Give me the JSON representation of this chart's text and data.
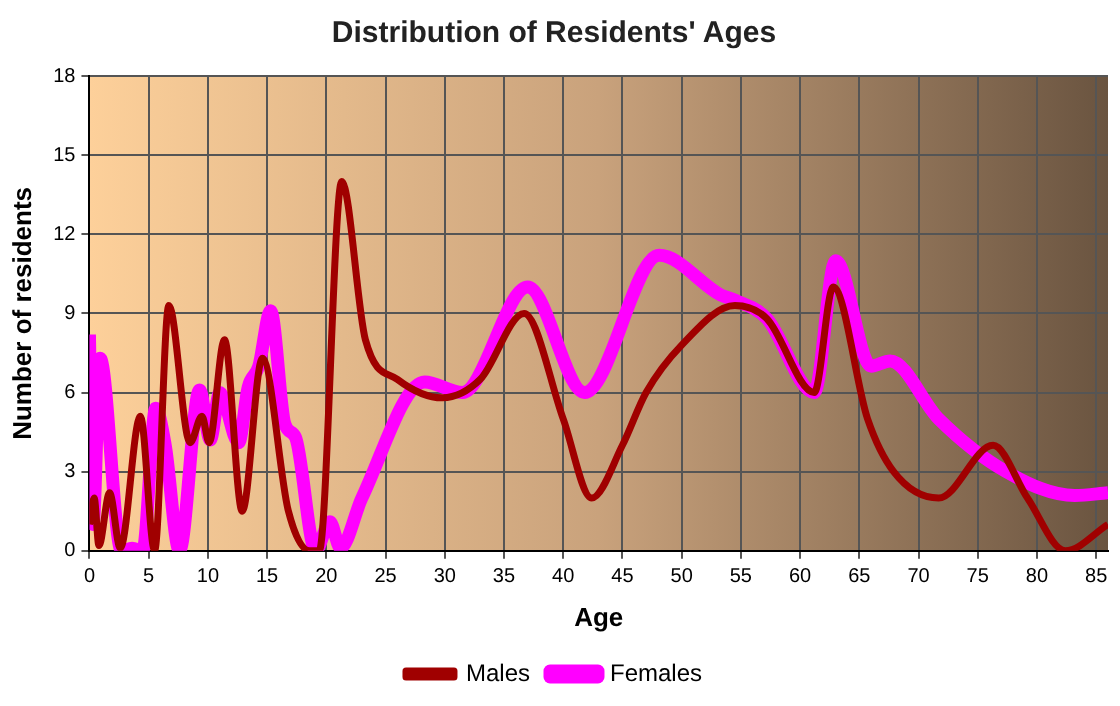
{
  "chart_data": {
    "type": "line",
    "title": "Distribution of Residents' Ages",
    "xlabel": "Age",
    "ylabel": "Number of residents",
    "xlim": [
      0,
      86
    ],
    "xticks": [
      0,
      5,
      10,
      15,
      20,
      25,
      30,
      35,
      40,
      45,
      50,
      55,
      60,
      65,
      70,
      75,
      80,
      85
    ],
    "ylim": [
      0,
      18
    ],
    "yticks": [
      0,
      3,
      6,
      9,
      12,
      15,
      18
    ],
    "grid": true,
    "legend": "bottom",
    "marker": "none",
    "series": [
      {
        "name": "Males",
        "color": "#a00000",
        "x": [
          0,
          0.4,
          0.8,
          1.7,
          2.6,
          4.3,
          5.5,
          6.7,
          8.5,
          9.5,
          10.1,
          11.4,
          12.9,
          14.6,
          16.8,
          18.6,
          19.4,
          21.3,
          23.3,
          26,
          29.8,
          33,
          36.7,
          40,
          42.4,
          45,
          47,
          50,
          54.5,
          57.2,
          61.2,
          62.8,
          65.7,
          67.9,
          71.7,
          76.3,
          79.2,
          82.4,
          86
        ],
        "values": [
          1,
          2,
          0.2,
          2.2,
          0.1,
          5.1,
          0,
          9.3,
          4.1,
          5.1,
          4.1,
          8,
          1.5,
          7.3,
          1.5,
          0,
          0,
          14,
          8,
          6.5,
          5.8,
          6.5,
          9,
          5,
          2,
          4,
          6,
          7.8,
          9.3,
          8.8,
          6,
          10,
          5,
          3,
          2,
          4,
          2,
          0,
          1
        ]
      },
      {
        "name": "Females",
        "color": "#ff00ff",
        "x": [
          0,
          0.3,
          0.9,
          2.7,
          3.6,
          4.5,
          5.6,
          6.4,
          7.6,
          9.3,
          10.2,
          11,
          12.6,
          13.4,
          14.3,
          15.3,
          16.5,
          17.4,
          19.1,
          20.3,
          21.2,
          23,
          28.3,
          31.5,
          37,
          41.8,
          48.1,
          53.3,
          54.5,
          57.2,
          61.2,
          63,
          66,
          67.6,
          71.7,
          77.4,
          83.2,
          86
        ],
        "values": [
          8.2,
          1,
          7.3,
          0,
          0.1,
          0,
          5.4,
          4,
          0,
          6.1,
          4.2,
          6,
          4.1,
          6.2,
          7,
          9.1,
          4.8,
          4.3,
          0,
          1.1,
          0.1,
          2,
          6.4,
          6,
          10,
          6,
          11.2,
          9.7,
          9.5,
          8.8,
          6,
          11,
          7,
          7.2,
          5,
          3,
          2.1,
          2.2
        ]
      }
    ]
  }
}
